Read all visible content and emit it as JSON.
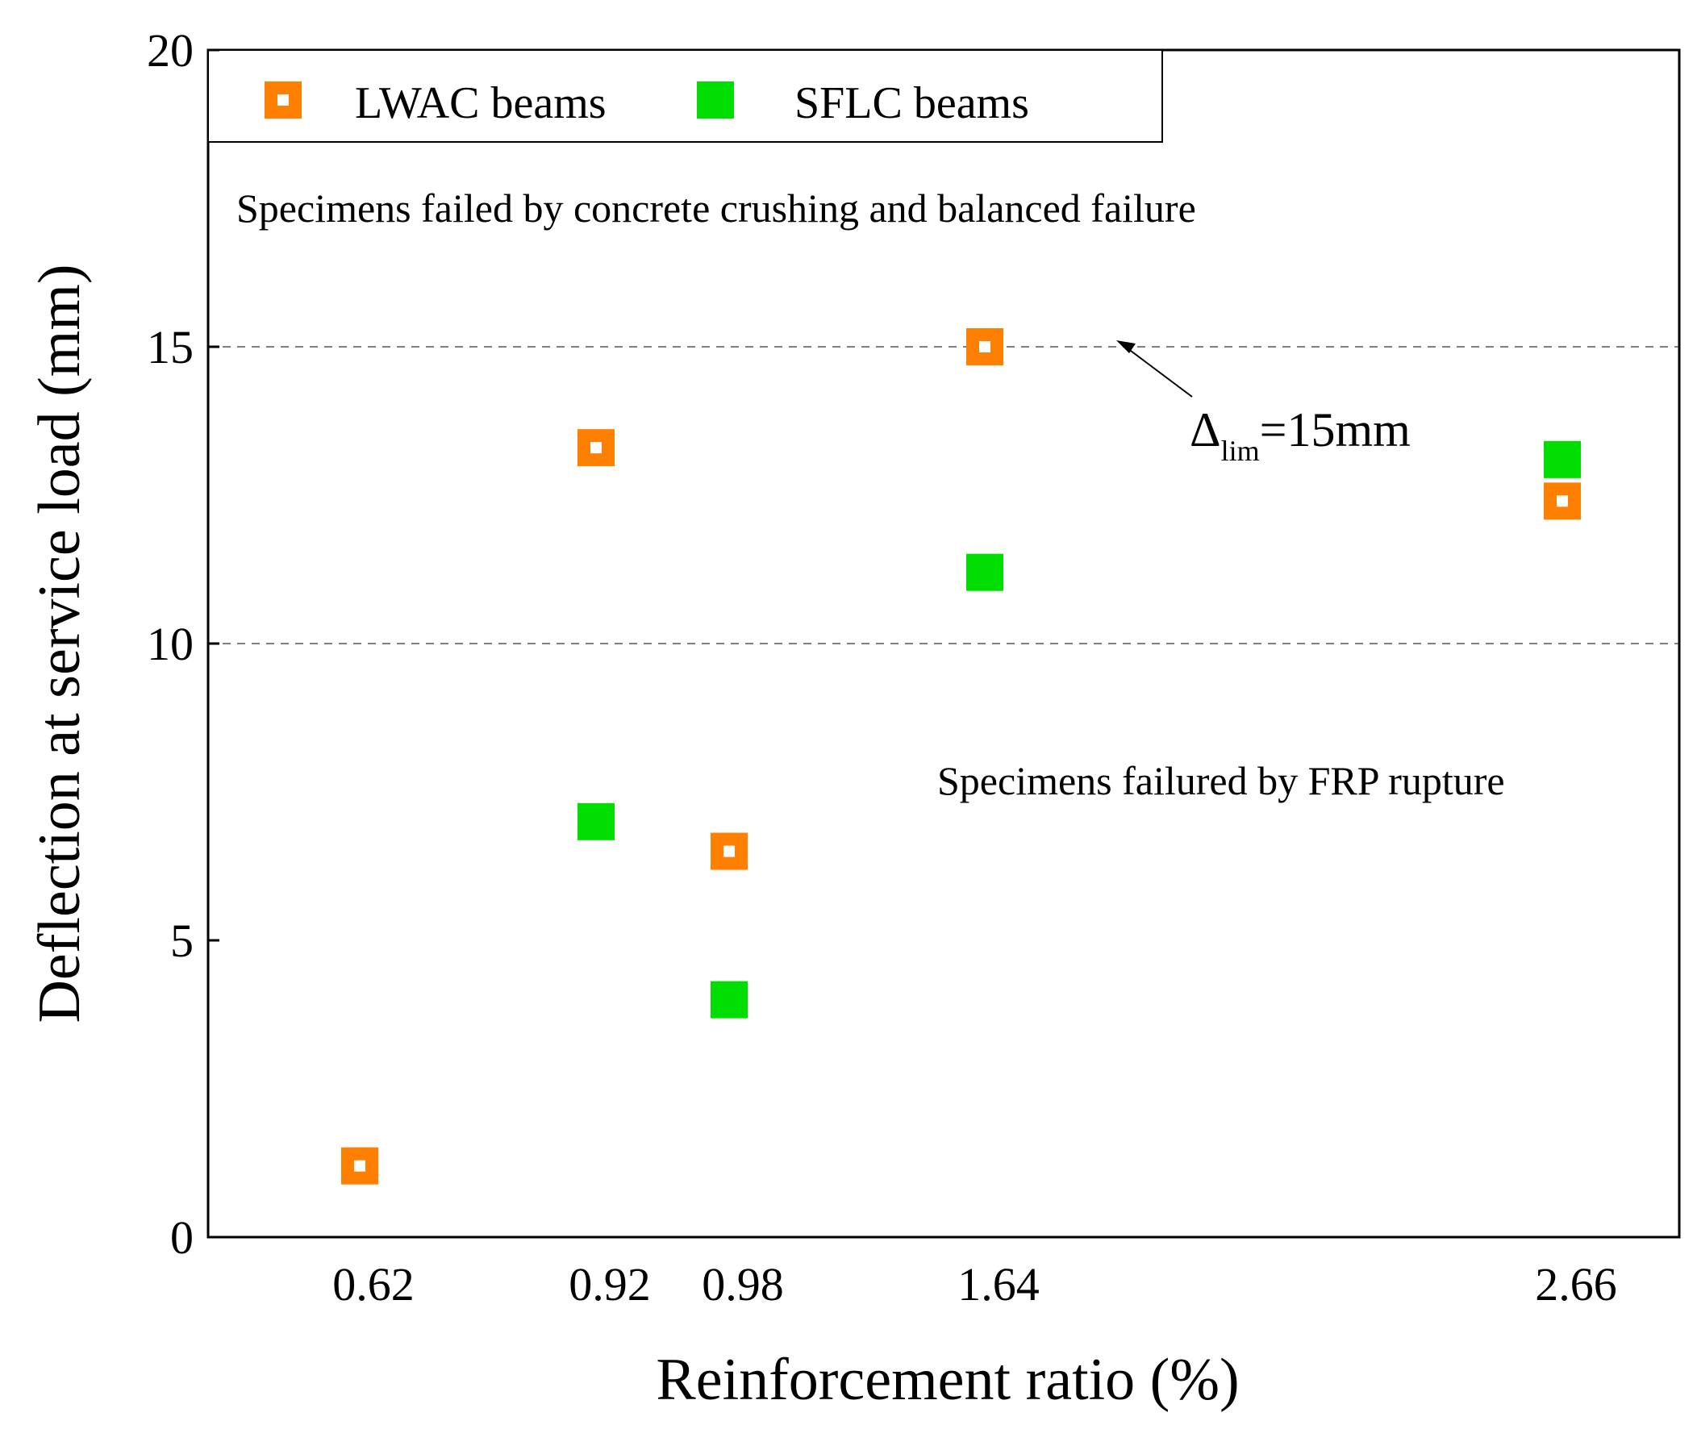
{
  "chart_data": {
    "type": "scatter",
    "title": "",
    "xlabel": "Reinforcement ratio (%)",
    "ylabel": "Deflection at service load (mm)",
    "ylim": [
      0,
      20
    ],
    "yticks": [
      "0",
      "5",
      "10",
      "15",
      "20"
    ],
    "xticks": [
      "0.62",
      "0.92",
      "0.98",
      "1.64",
      "2.66"
    ],
    "grid": false,
    "legend_position": "top-left",
    "reference_lines": [
      15,
      10
    ],
    "series": [
      {
        "name": "LWAC beams",
        "marker": "hollow-square",
        "color": "#ff8000",
        "points": [
          {
            "x": "0.62",
            "y": 1.2
          },
          {
            "x": "0.92",
            "y": 13.3
          },
          {
            "x": "0.98",
            "y": 6.5
          },
          {
            "x": "1.64",
            "y": 15.0
          },
          {
            "x": "2.66",
            "y": 12.4
          }
        ]
      },
      {
        "name": "SFLC beams",
        "marker": "filled-square",
        "color": "#00dd00",
        "points": [
          {
            "x": "0.92",
            "y": 7.0
          },
          {
            "x": "0.98",
            "y": 4.0
          },
          {
            "x": "1.64",
            "y": 11.2
          },
          {
            "x": "2.66",
            "y": 13.1
          }
        ]
      }
    ],
    "annotations": {
      "upper_region": "Specimens failed by concrete crushing and balanced failure",
      "lower_region": "Specimens failured by FRP rupture",
      "limit_symbol": "Δ",
      "limit_subscript": "lim",
      "limit_value": "=15mm"
    }
  }
}
